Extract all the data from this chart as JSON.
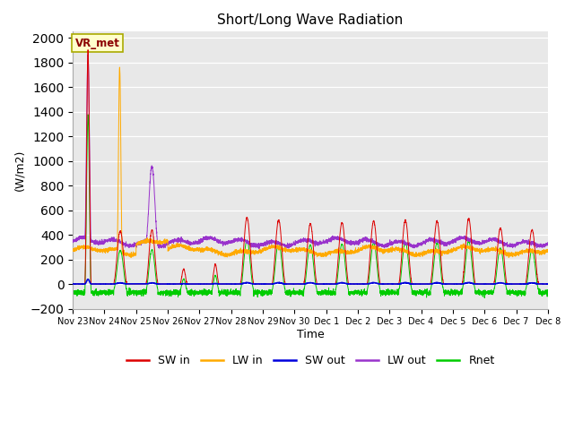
{
  "title": "Short/Long Wave Radiation",
  "ylabel": "(W/m2)",
  "xlabel": "Time",
  "ylim": [
    -200,
    2050
  ],
  "yticks": [
    -200,
    0,
    200,
    400,
    600,
    800,
    1000,
    1200,
    1400,
    1600,
    1800,
    2000
  ],
  "station_label": "VR_met",
  "legend": [
    "SW in",
    "LW in",
    "SW out",
    "LW out",
    "Rnet"
  ],
  "colors": {
    "SW in": "#dd0000",
    "LW in": "#ffaa00",
    "SW out": "#0000dd",
    "LW out": "#9933cc",
    "Rnet": "#00cc00"
  },
  "background_color": "#e8e8e8",
  "tick_labels": [
    "Nov 23",
    "Nov 24",
    "Nov 25",
    "Nov 26",
    "Nov 27",
    "Nov 28",
    "Nov 29",
    "Nov 30",
    "Dec 1",
    "Dec 2",
    "Dec 3",
    "Dec 4",
    "Dec 5",
    "Dec 6",
    "Dec 7",
    "Dec 8"
  ]
}
